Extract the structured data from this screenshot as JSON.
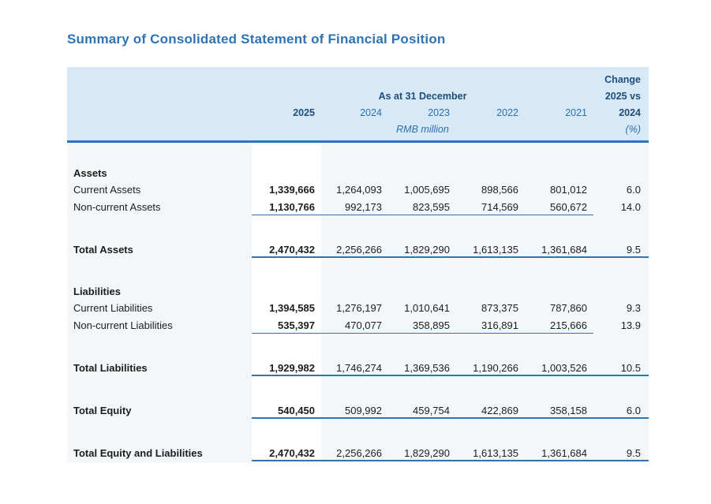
{
  "page": {
    "title": "Summary of Consolidated Statement of Financial Position"
  },
  "colors": {
    "title_blue": "#2e74b5",
    "header_text_navy": "#1f4e79",
    "header_text_blue": "#2c6fad",
    "rule_blue": "#2e75b6",
    "header_background": "#d7e9f6",
    "body_background": "#f3f7fa",
    "highlight_column": "#ffffff",
    "text_ink": "#1d1d1b"
  },
  "table": {
    "header": {
      "change_line1": "Change",
      "group_label": "As at 31 December",
      "change_line2": "2025 vs",
      "years": [
        "2025",
        "2024",
        "2023",
        "2022",
        "2021"
      ],
      "change_line3": "2024",
      "unit_label": "RMB million",
      "change_unit": "(%)"
    },
    "rows": [
      {
        "type": "section",
        "label": "Assets"
      },
      {
        "type": "data",
        "label": "Current Assets",
        "values": [
          "1,339,666",
          "1,264,093",
          "1,005,695",
          "898,566",
          "801,012"
        ],
        "change": "6.0"
      },
      {
        "type": "data",
        "label": "Non-current Assets",
        "values": [
          "1,130,766",
          "992,173",
          "823,595",
          "714,569",
          "560,672"
        ],
        "change": "14.0",
        "underline": "thin"
      },
      {
        "type": "spacer"
      },
      {
        "type": "total",
        "label": "Total Assets",
        "values": [
          "2,470,432",
          "2,256,266",
          "1,829,290",
          "1,613,135",
          "1,361,684"
        ],
        "change": "9.5",
        "underline": "thick"
      },
      {
        "type": "spacer"
      },
      {
        "type": "section",
        "label": "Liabilities"
      },
      {
        "type": "data",
        "label": "Current Liabilities",
        "values": [
          "1,394,585",
          "1,276,197",
          "1,010,641",
          "873,375",
          "787,860"
        ],
        "change": "9.3"
      },
      {
        "type": "data",
        "label": "Non-current Liabilities",
        "values": [
          "535,397",
          "470,077",
          "358,895",
          "316,891",
          "215,666"
        ],
        "change": "13.9",
        "underline": "thin"
      },
      {
        "type": "spacer"
      },
      {
        "type": "total",
        "label": "Total Liabilities",
        "values": [
          "1,929,982",
          "1,746,274",
          "1,369,536",
          "1,190,266",
          "1,003,526"
        ],
        "change": "10.5",
        "underline": "thick"
      },
      {
        "type": "spacer"
      },
      {
        "type": "total",
        "label": "Total Equity",
        "values": [
          "540,450",
          "509,992",
          "459,754",
          "422,869",
          "358,158"
        ],
        "change": "6.0",
        "underline": "thick"
      },
      {
        "type": "spacer"
      },
      {
        "type": "total",
        "label": "Total Equity and Liabilities",
        "values": [
          "2,470,432",
          "2,256,266",
          "1,829,290",
          "1,613,135",
          "1,361,684"
        ],
        "change": "9.5",
        "underline": "thick"
      }
    ]
  }
}
